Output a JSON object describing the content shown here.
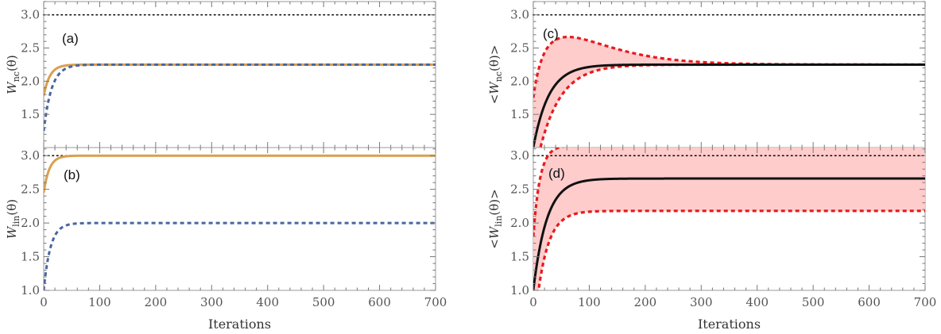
{
  "colors": {
    "orange": "#d9a04e",
    "blue": "#4a66a0",
    "black": "#111111",
    "red": "#e8191c",
    "band": "#ffcccc",
    "frame": "#9a9a9a"
  },
  "chart_data": [
    {
      "id": "a",
      "panel_label": "(a)",
      "type": "line",
      "ylabel_prefix": "W",
      "ylabel_sub": "nc",
      "ylabel_suffix": "(θ)",
      "xlim": [
        0,
        700
      ],
      "ylim": [
        1.0,
        3.2
      ],
      "yticks": [
        1.5,
        2.0,
        2.5,
        3.0
      ],
      "ytick_labels": [
        "1.5",
        "2.0",
        "2.5",
        "3.0"
      ],
      "reference_line": 3.0,
      "series": [
        {
          "name": "orange-solid",
          "style": "solid",
          "color": "orange",
          "start": 1.78,
          "end": 2.25,
          "tau": 11
        },
        {
          "name": "blue-dashed",
          "style": "dashed",
          "color": "blue",
          "start": 1.25,
          "end": 2.25,
          "tau": 14
        }
      ]
    },
    {
      "id": "b",
      "panel_label": "(b)",
      "type": "line",
      "ylabel_prefix": "W",
      "ylabel_sub": "lin",
      "ylabel_suffix": "(θ)",
      "xlim": [
        0,
        700
      ],
      "ylim": [
        1.0,
        3.12
      ],
      "yticks": [
        1.0,
        1.5,
        2.0,
        2.5,
        3.0
      ],
      "ytick_labels": [
        "1.0",
        "1.5",
        "2.0",
        "2.5",
        "3.0"
      ],
      "xticks": [
        0,
        100,
        200,
        300,
        400,
        500,
        600,
        700
      ],
      "xtick_labels": [
        "0",
        "100",
        "200",
        "300",
        "400",
        "500",
        "600",
        "700"
      ],
      "xlabel": "Iterations",
      "reference_line": 3.0,
      "series": [
        {
          "name": "orange-solid",
          "style": "solid",
          "color": "orange",
          "start": 2.45,
          "end": 3.0,
          "tau": 10
        },
        {
          "name": "blue-dashed",
          "style": "dashed",
          "color": "blue",
          "start": 1.0,
          "end": 2.0,
          "tau": 12
        }
      ]
    },
    {
      "id": "c",
      "panel_label": "(c)",
      "type": "area",
      "ylabel_prefix": "<W",
      "ylabel_sub": "nc",
      "ylabel_suffix": "(θ)>",
      "xlim": [
        0,
        700
      ],
      "ylim": [
        1.0,
        3.2
      ],
      "yticks": [
        1.5,
        2.0,
        2.5,
        3.0
      ],
      "ytick_labels": [
        "1.5",
        "2.0",
        "2.5",
        "3.0"
      ],
      "reference_line": 3.0,
      "mean": {
        "start": 1.0,
        "end": 2.25,
        "tau": 28
      },
      "upper": {
        "start": 1.75,
        "end": 2.25,
        "tau": 12,
        "bump": 0.42,
        "bump_tau": 60
      },
      "lower": {
        "start": 0.5,
        "end": 2.25,
        "tau": 38
      }
    },
    {
      "id": "d",
      "panel_label": "(d)",
      "type": "area",
      "ylabel_prefix": "<W",
      "ylabel_sub": "lin",
      "ylabel_suffix": "(θ)>",
      "xlim": [
        0,
        700
      ],
      "ylim": [
        1.0,
        3.12
      ],
      "yticks": [
        1.0,
        1.5,
        2.0,
        2.5,
        3.0
      ],
      "ytick_labels": [
        "1.0",
        "1.5",
        "2.0",
        "2.5",
        "3.0"
      ],
      "xticks": [
        0,
        100,
        200,
        300,
        400,
        500,
        600,
        700
      ],
      "xtick_labels": [
        "0",
        "100",
        "200",
        "300",
        "400",
        "500",
        "600",
        "700"
      ],
      "xlabel": "Iterations",
      "reference_line": 3.0,
      "mean": {
        "start": 1.0,
        "end": 2.66,
        "tau": 24
      },
      "upper": {
        "start": 1.8,
        "end": 3.15,
        "tau": 12
      },
      "lower": {
        "start": 0.3,
        "end": 2.18,
        "tau": 20
      }
    }
  ]
}
